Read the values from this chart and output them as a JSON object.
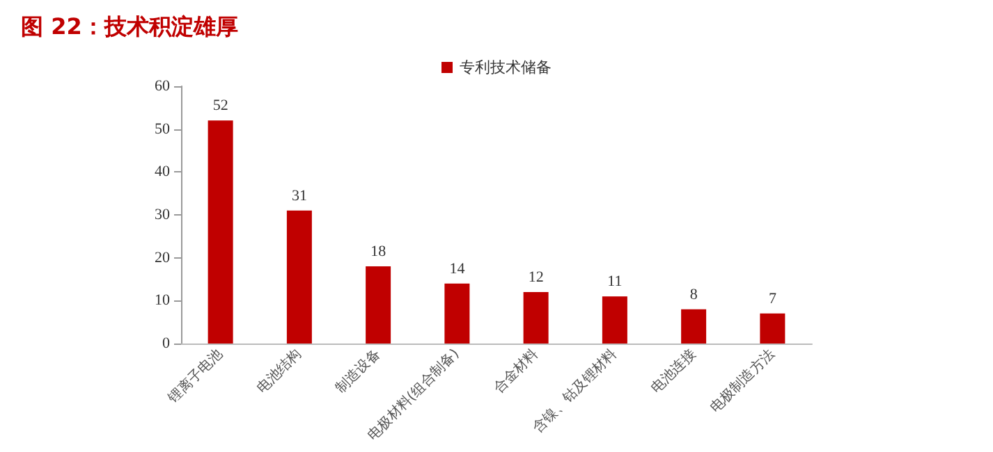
{
  "chart_data": {
    "type": "bar",
    "title": "图 22：技术积淀雄厚",
    "categories": [
      "锂离子电池",
      "电池结构",
      "制造设备",
      "电极材料(组合制备)",
      "合金材料",
      "含镍、钴及锂材料",
      "电池连接",
      "电极制造方法"
    ],
    "series": [
      {
        "name": "专利技术储备",
        "color": "#c00000",
        "values": [
          52,
          31,
          18,
          14,
          12,
          11,
          8,
          7
        ]
      }
    ],
    "ylim": [
      0,
      60
    ],
    "yticks": [
      0,
      10,
      20,
      30,
      40,
      50,
      60
    ],
    "grid": false,
    "legend": "top",
    "data_labels": true
  }
}
